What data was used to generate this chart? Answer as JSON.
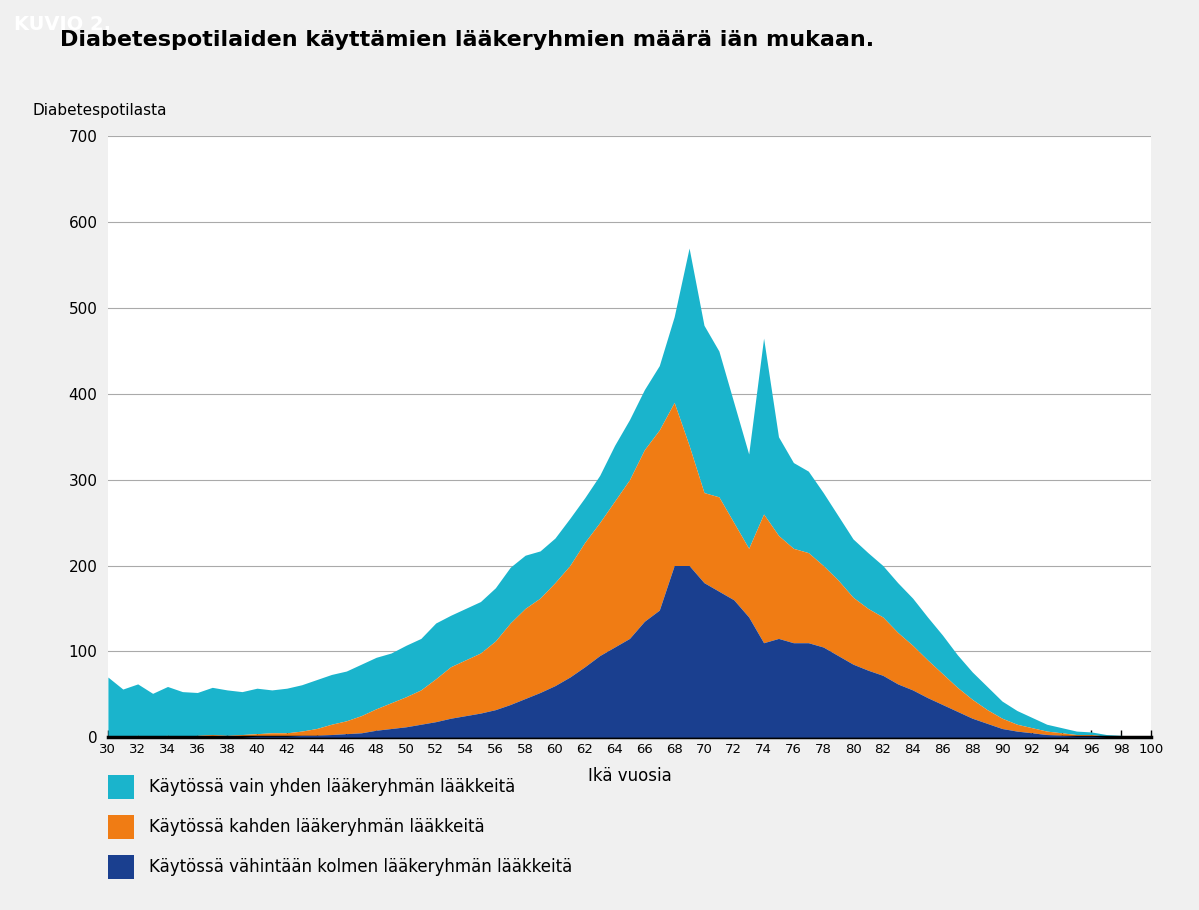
{
  "title": "Diabetespotilaiden käyttämien lääkeryhmien määrä iän mukaan.",
  "header": "KUVIO 2.",
  "ylabel": "Diabetespotilasta",
  "xlabel": "Ikä vuosia",
  "header_bg": "#1a6ea8",
  "header_text_color": "#ffffff",
  "bg_color": "#f0f0f0",
  "plot_bg": "#ffffff",
  "color_teal": "#1ab4cc",
  "color_orange": "#f07c14",
  "color_dark_blue": "#1a3f8f",
  "ylim": [
    0,
    700
  ],
  "yticks": [
    0,
    100,
    200,
    300,
    400,
    500,
    600,
    700
  ],
  "legend_labels": [
    "Käytössä vain yhden lääkeryhmän lääkkeitä",
    "Käytössä kahden lääkeryhmän lääkkeitä",
    "Käytössä vähintään kolmen lääkeryhmän lääkkeitä"
  ],
  "ages": [
    30,
    31,
    32,
    33,
    34,
    35,
    36,
    37,
    38,
    39,
    40,
    41,
    42,
    43,
    44,
    45,
    46,
    47,
    48,
    49,
    50,
    51,
    52,
    53,
    54,
    55,
    56,
    57,
    58,
    59,
    60,
    61,
    62,
    63,
    64,
    65,
    66,
    67,
    68,
    69,
    70,
    71,
    72,
    73,
    74,
    75,
    76,
    77,
    78,
    79,
    80,
    81,
    82,
    83,
    84,
    85,
    86,
    87,
    88,
    89,
    90,
    91,
    92,
    93,
    94,
    95,
    96,
    97,
    98,
    99,
    100
  ],
  "s1": [
    68,
    55,
    60,
    50,
    57,
    52,
    50,
    55,
    53,
    50,
    53,
    50,
    52,
    54,
    57,
    58,
    58,
    60,
    60,
    58,
    60,
    60,
    65,
    60,
    60,
    60,
    62,
    65,
    62,
    55,
    52,
    55,
    52,
    55,
    65,
    70,
    70,
    75,
    100,
    230,
    195,
    170,
    140,
    110,
    205,
    115,
    100,
    95,
    85,
    75,
    68,
    65,
    60,
    58,
    55,
    50,
    45,
    38,
    32,
    27,
    20,
    16,
    12,
    8,
    6,
    4,
    3,
    2,
    1,
    1,
    1
  ],
  "s2": [
    2,
    1,
    2,
    1,
    2,
    1,
    2,
    3,
    2,
    3,
    3,
    4,
    4,
    5,
    8,
    12,
    15,
    20,
    25,
    30,
    35,
    40,
    50,
    60,
    65,
    70,
    80,
    95,
    105,
    110,
    120,
    130,
    145,
    155,
    170,
    185,
    200,
    210,
    190,
    140,
    105,
    110,
    90,
    80,
    150,
    120,
    110,
    105,
    95,
    88,
    78,
    72,
    68,
    60,
    52,
    44,
    36,
    28,
    22,
    16,
    12,
    8,
    6,
    4,
    3,
    2,
    2,
    1,
    1,
    0,
    0
  ],
  "s3": [
    0,
    0,
    0,
    0,
    0,
    0,
    0,
    0,
    0,
    0,
    1,
    1,
    1,
    2,
    2,
    3,
    4,
    5,
    8,
    10,
    12,
    15,
    18,
    22,
    25,
    28,
    32,
    38,
    45,
    52,
    60,
    70,
    82,
    95,
    105,
    115,
    135,
    148,
    200,
    200,
    180,
    170,
    160,
    140,
    110,
    115,
    110,
    110,
    105,
    95,
    85,
    78,
    72,
    62,
    55,
    46,
    38,
    30,
    22,
    16,
    10,
    7,
    5,
    3,
    2,
    1,
    1,
    0,
    0,
    0,
    0
  ]
}
